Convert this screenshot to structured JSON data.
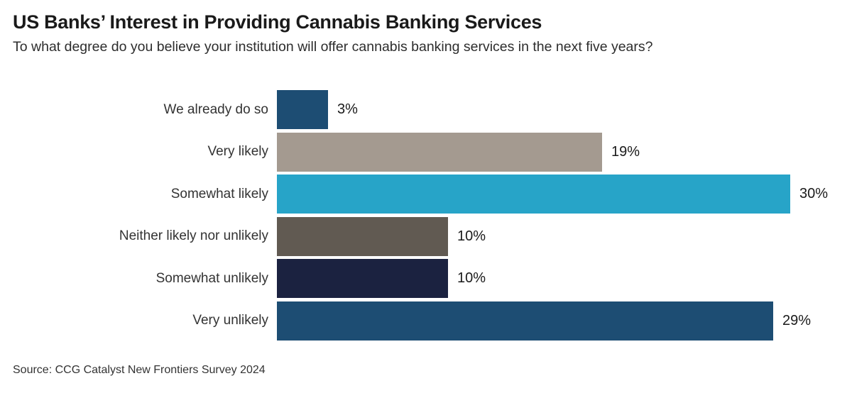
{
  "header": {
    "title": "US Banks’ Interest in Providing Cannabis Banking Services",
    "subtitle": "To what degree do you believe your institution will offer cannabis banking services in the next five years?"
  },
  "footer": {
    "source": "Source: CCG Catalyst New Frontiers Survey 2024"
  },
  "chart_data": {
    "type": "bar",
    "orientation": "horizontal",
    "title": "US Banks’ Interest in Providing Cannabis Banking Services",
    "subtitle": "To what degree do you believe your institution will offer cannabis banking services in the next five years?",
    "categories": [
      "We already do so",
      "Very likely",
      "Somewhat likely",
      "Neither likely nor unlikely",
      "Somewhat unlikely",
      "Very unlikely"
    ],
    "values": [
      3,
      19,
      30,
      10,
      10,
      29
    ],
    "value_labels": [
      "3%",
      "19%",
      "30%",
      "10%",
      "10%",
      "29%"
    ],
    "bar_colors": [
      "#1d4d73",
      "#a49a90",
      "#27a4c8",
      "#615a52",
      "#1b2240",
      "#1d4d73"
    ],
    "xlabel": "",
    "ylabel": "",
    "xlim": [
      0,
      30
    ],
    "grid": false,
    "legend": false,
    "value_label_position": "outside-right",
    "source": "Source: CCG Catalyst New Frontiers Survey 2024"
  }
}
